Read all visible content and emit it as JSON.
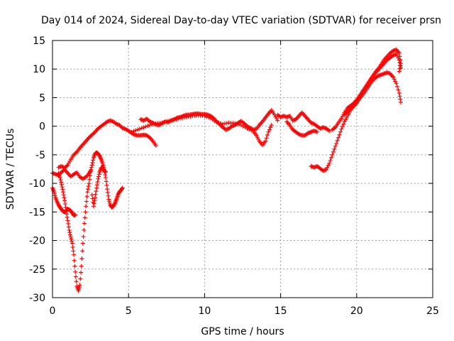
{
  "chart_data": {
    "type": "scatter",
    "title": "Day 014 of 2024, Sidereal Day-to-day VTEC variation (SDTVAR) for receiver prsn",
    "xlabel": "GPS time / hours",
    "ylabel": "SDTVAR / TECUs",
    "xlim": [
      0,
      25
    ],
    "ylim": [
      -30,
      15
    ],
    "x_ticks": [
      0,
      5,
      10,
      15,
      20,
      25
    ],
    "y_ticks": [
      -30,
      -25,
      -20,
      -15,
      -10,
      -5,
      0,
      5,
      10,
      15
    ],
    "grid": true,
    "marker": "plus",
    "color": "#ff0000",
    "series": [
      {
        "points": [
          [
            0.0,
            -8.2
          ],
          [
            0.2,
            -8.4
          ],
          [
            0.4,
            -8.6
          ],
          [
            0.6,
            -8.0
          ],
          [
            0.8,
            -7.6
          ],
          [
            1.0,
            -8.2
          ],
          [
            1.2,
            -8.8
          ],
          [
            1.4,
            -8.4
          ],
          [
            1.6,
            -8.1
          ],
          [
            1.8,
            -8.9
          ],
          [
            2.0,
            -9.2
          ],
          [
            2.2,
            -8.9
          ],
          [
            2.4,
            -8.3
          ],
          [
            2.5,
            -7.8
          ]
        ]
      },
      {
        "points": [
          [
            0.4,
            -7.2
          ],
          [
            0.6,
            -7.0
          ],
          [
            0.8,
            -7.3
          ],
          [
            1.0,
            -6.8
          ],
          [
            1.2,
            -5.8
          ],
          [
            1.4,
            -5.0
          ],
          [
            1.6,
            -4.5
          ],
          [
            1.8,
            -3.8
          ],
          [
            2.0,
            -3.2
          ],
          [
            2.2,
            -2.6
          ],
          [
            2.4,
            -2.0
          ],
          [
            2.6,
            -1.5
          ],
          [
            2.8,
            -1.0
          ],
          [
            3.0,
            -0.4
          ],
          [
            3.2,
            0.0
          ],
          [
            3.4,
            0.4
          ],
          [
            3.6,
            0.8
          ],
          [
            3.8,
            1.0
          ],
          [
            4.0,
            0.8
          ],
          [
            4.2,
            0.4
          ],
          [
            4.4,
            0.2
          ],
          [
            4.6,
            -0.3
          ],
          [
            4.8,
            -0.5
          ],
          [
            5.0,
            -0.8
          ],
          [
            5.2,
            -1.2
          ],
          [
            5.4,
            -1.5
          ],
          [
            5.6,
            -1.6
          ],
          [
            5.8,
            -1.6
          ],
          [
            6.0,
            -1.5
          ],
          [
            6.2,
            -1.6
          ],
          [
            6.4,
            -2.0
          ],
          [
            6.6,
            -2.6
          ],
          [
            6.8,
            -3.4
          ]
        ]
      },
      {
        "points": [
          [
            0.0,
            -10.8
          ],
          [
            0.1,
            -11.5
          ],
          [
            0.2,
            -12.5
          ],
          [
            0.3,
            -13.2
          ],
          [
            0.4,
            -13.8
          ],
          [
            0.5,
            -14.2
          ],
          [
            0.6,
            -14.6
          ],
          [
            0.7,
            -14.9
          ],
          [
            0.8,
            -15.0
          ],
          [
            0.9,
            -14.8
          ],
          [
            1.0,
            -14.5
          ],
          [
            1.1,
            -14.6
          ],
          [
            1.2,
            -14.8
          ],
          [
            1.3,
            -15.2
          ],
          [
            1.4,
            -15.6
          ],
          [
            1.5,
            -15.5
          ]
        ]
      },
      {
        "points": [
          [
            0.4,
            -8.2
          ],
          [
            0.5,
            -9.0
          ],
          [
            0.6,
            -10.2
          ],
          [
            0.7,
            -11.5
          ],
          [
            0.8,
            -13.0
          ],
          [
            0.9,
            -14.8
          ],
          [
            1.0,
            -16.5
          ],
          [
            1.1,
            -18.2
          ],
          [
            1.2,
            -19.4
          ],
          [
            1.3,
            -20.5
          ],
          [
            1.4,
            -22.5
          ],
          [
            1.5,
            -25.5
          ],
          [
            1.6,
            -28.0
          ],
          [
            1.7,
            -28.8
          ],
          [
            1.8,
            -27.8
          ],
          [
            1.9,
            -24.5
          ],
          [
            2.0,
            -20.5
          ],
          [
            2.1,
            -17.0
          ],
          [
            2.2,
            -14.0
          ],
          [
            2.3,
            -11.5
          ],
          [
            2.4,
            -10.0
          ],
          [
            2.5,
            -8.0
          ],
          [
            2.6,
            -6.8
          ],
          [
            2.7,
            -5.5
          ],
          [
            2.8,
            -4.8
          ],
          [
            2.9,
            -4.6
          ],
          [
            3.0,
            -4.8
          ],
          [
            3.1,
            -5.2
          ],
          [
            3.2,
            -5.8
          ],
          [
            3.3,
            -6.5
          ],
          [
            3.4,
            -7.5
          ],
          [
            3.5,
            -9.0
          ],
          [
            3.6,
            -11.0
          ],
          [
            3.7,
            -12.8
          ],
          [
            3.8,
            -13.8
          ],
          [
            3.9,
            -14.2
          ],
          [
            4.0,
            -14.0
          ],
          [
            4.1,
            -13.5
          ],
          [
            4.2,
            -12.8
          ],
          [
            4.3,
            -12.0
          ],
          [
            4.4,
            -11.5
          ],
          [
            4.5,
            -11.2
          ],
          [
            4.6,
            -10.8
          ]
        ]
      },
      {
        "points": [
          [
            2.6,
            -12.0
          ],
          [
            2.7,
            -14.0
          ],
          [
            2.8,
            -12.5
          ],
          [
            2.9,
            -10.8
          ],
          [
            3.0,
            -9.2
          ],
          [
            3.1,
            -8.0
          ],
          [
            3.2,
            -7.3
          ],
          [
            3.3,
            -7.2
          ],
          [
            3.4,
            -7.8
          ],
          [
            3.5,
            -8.0
          ]
        ]
      },
      {
        "points": [
          [
            5.8,
            1.2
          ],
          [
            6.0,
            1.0
          ],
          [
            6.2,
            1.3
          ],
          [
            6.4,
            0.8
          ],
          [
            6.6,
            0.6
          ],
          [
            6.8,
            0.3
          ],
          [
            7.0,
            0.2
          ],
          [
            7.2,
            0.5
          ],
          [
            7.4,
            0.8
          ],
          [
            7.6,
            0.7
          ],
          [
            7.8,
            1.0
          ],
          [
            8.0,
            1.2
          ],
          [
            8.2,
            1.5
          ],
          [
            8.4,
            1.6
          ],
          [
            8.6,
            1.8
          ],
          [
            8.8,
            2.0
          ],
          [
            9.0,
            2.0
          ],
          [
            9.2,
            2.1
          ],
          [
            9.4,
            2.2
          ],
          [
            9.6,
            2.2
          ],
          [
            9.8,
            2.1
          ],
          [
            10.0,
            2.1
          ],
          [
            10.2,
            2.0
          ],
          [
            10.4,
            1.8
          ],
          [
            10.6,
            1.4
          ],
          [
            10.8,
            0.8
          ],
          [
            11.0,
            0.3
          ],
          [
            11.2,
            -0.2
          ],
          [
            11.4,
            -0.6
          ],
          [
            11.6,
            -0.4
          ],
          [
            11.8,
            0.0
          ],
          [
            12.0,
            0.2
          ],
          [
            12.2,
            0.6
          ],
          [
            12.4,
            0.9
          ],
          [
            12.6,
            0.5
          ],
          [
            12.8,
            0.0
          ],
          [
            13.0,
            -0.3
          ],
          [
            13.2,
            -0.6
          ],
          [
            13.4,
            -0.5
          ],
          [
            13.6,
            0.2
          ],
          [
            13.8,
            0.8
          ],
          [
            14.0,
            1.5
          ],
          [
            14.2,
            2.2
          ],
          [
            14.4,
            2.8
          ],
          [
            14.6,
            2.0
          ],
          [
            14.8,
            1.0
          ]
        ]
      },
      {
        "points": [
          [
            5.2,
            -1.0
          ],
          [
            5.6,
            -0.6
          ],
          [
            6.0,
            -0.2
          ],
          [
            6.4,
            0.2
          ],
          [
            6.8,
            0.5
          ],
          [
            7.2,
            0.6
          ],
          [
            7.6,
            0.9
          ],
          [
            8.0,
            1.1
          ],
          [
            8.4,
            1.4
          ],
          [
            8.8,
            1.6
          ],
          [
            9.2,
            1.8
          ],
          [
            9.6,
            1.9
          ],
          [
            10.0,
            1.8
          ],
          [
            10.4,
            1.4
          ],
          [
            10.8,
            0.7
          ],
          [
            11.2,
            0.4
          ],
          [
            11.6,
            0.6
          ],
          [
            12.0,
            0.5
          ],
          [
            12.4,
            0.2
          ],
          [
            12.8,
            -0.4
          ],
          [
            13.2,
            -0.9
          ],
          [
            13.4,
            -1.6
          ],
          [
            13.6,
            -2.6
          ],
          [
            13.8,
            -3.3
          ],
          [
            14.0,
            -2.6
          ],
          [
            14.2,
            -1.0
          ],
          [
            14.4,
            0.2
          ]
        ]
      },
      {
        "points": [
          [
            14.8,
            2.0
          ],
          [
            15.0,
            1.6
          ],
          [
            15.2,
            1.8
          ],
          [
            15.4,
            1.6
          ],
          [
            15.6,
            1.8
          ],
          [
            15.8,
            1.0
          ],
          [
            16.0,
            1.2
          ],
          [
            16.2,
            1.8
          ],
          [
            16.4,
            2.4
          ],
          [
            16.6,
            1.8
          ],
          [
            16.8,
            1.2
          ],
          [
            17.0,
            0.6
          ],
          [
            17.2,
            0.4
          ],
          [
            17.4,
            0.0
          ],
          [
            17.6,
            -0.4
          ],
          [
            17.8,
            -0.2
          ],
          [
            18.0,
            -0.4
          ],
          [
            18.2,
            -0.8
          ]
        ]
      },
      {
        "points": [
          [
            15.4,
            0.8
          ],
          [
            15.6,
            0.2
          ],
          [
            15.8,
            -0.6
          ],
          [
            16.0,
            -1.0
          ],
          [
            16.2,
            -1.4
          ],
          [
            16.4,
            -1.6
          ],
          [
            16.6,
            -1.6
          ],
          [
            16.8,
            -1.2
          ],
          [
            17.0,
            -1.0
          ],
          [
            17.2,
            -0.8
          ],
          [
            17.4,
            -1.0
          ]
        ]
      },
      {
        "points": [
          [
            17.0,
            -7.0
          ],
          [
            17.2,
            -7.2
          ],
          [
            17.4,
            -7.0
          ],
          [
            17.6,
            -7.4
          ],
          [
            17.8,
            -7.8
          ],
          [
            18.0,
            -7.6
          ],
          [
            18.2,
            -6.5
          ],
          [
            18.4,
            -5.0
          ],
          [
            18.6,
            -3.5
          ],
          [
            18.8,
            -2.0
          ],
          [
            19.0,
            -0.5
          ],
          [
            19.2,
            0.8
          ],
          [
            19.4,
            1.8
          ],
          [
            19.6,
            2.8
          ],
          [
            19.8,
            3.5
          ],
          [
            20.0,
            4.0
          ],
          [
            20.2,
            4.8
          ],
          [
            20.4,
            5.5
          ],
          [
            20.6,
            6.2
          ],
          [
            20.8,
            7.0
          ],
          [
            21.0,
            7.8
          ],
          [
            21.2,
            8.4
          ],
          [
            21.4,
            8.8
          ],
          [
            21.6,
            9.0
          ],
          [
            21.8,
            9.2
          ],
          [
            22.0,
            9.4
          ],
          [
            22.2,
            9.2
          ],
          [
            22.4,
            8.6
          ],
          [
            22.6,
            7.5
          ],
          [
            22.8,
            5.8
          ],
          [
            22.9,
            4.2
          ]
        ]
      },
      {
        "points": [
          [
            18.4,
            -0.6
          ],
          [
            18.6,
            -0.2
          ],
          [
            18.8,
            0.6
          ],
          [
            19.0,
            1.4
          ],
          [
            19.2,
            2.4
          ],
          [
            19.4,
            3.2
          ],
          [
            19.6,
            3.6
          ],
          [
            19.8,
            4.0
          ],
          [
            20.0,
            4.6
          ],
          [
            20.2,
            5.4
          ],
          [
            20.4,
            6.2
          ],
          [
            20.6,
            7.0
          ],
          [
            20.8,
            7.8
          ],
          [
            21.0,
            8.6
          ],
          [
            21.2,
            9.4
          ],
          [
            21.4,
            10.0
          ],
          [
            21.6,
            10.8
          ],
          [
            21.8,
            11.6
          ],
          [
            22.0,
            12.2
          ],
          [
            22.2,
            12.8
          ],
          [
            22.4,
            13.2
          ],
          [
            22.6,
            13.4
          ],
          [
            22.8,
            12.8
          ],
          [
            22.9,
            11.0
          ],
          [
            22.8,
            9.6
          ]
        ]
      },
      {
        "points": [
          [
            19.2,
            2.0
          ],
          [
            19.4,
            2.6
          ],
          [
            19.6,
            3.2
          ],
          [
            19.8,
            3.8
          ],
          [
            20.0,
            4.4
          ],
          [
            20.2,
            5.2
          ],
          [
            20.4,
            6.0
          ],
          [
            20.6,
            6.8
          ],
          [
            20.8,
            7.6
          ],
          [
            21.0,
            8.4
          ],
          [
            21.2,
            9.2
          ],
          [
            21.4,
            9.8
          ],
          [
            21.6,
            10.4
          ],
          [
            21.8,
            11.0
          ],
          [
            22.0,
            11.6
          ],
          [
            22.2,
            12.0
          ],
          [
            22.4,
            12.4
          ],
          [
            22.6,
            12.6
          ],
          [
            22.8,
            11.6
          ],
          [
            22.9,
            10.2
          ]
        ]
      }
    ]
  }
}
